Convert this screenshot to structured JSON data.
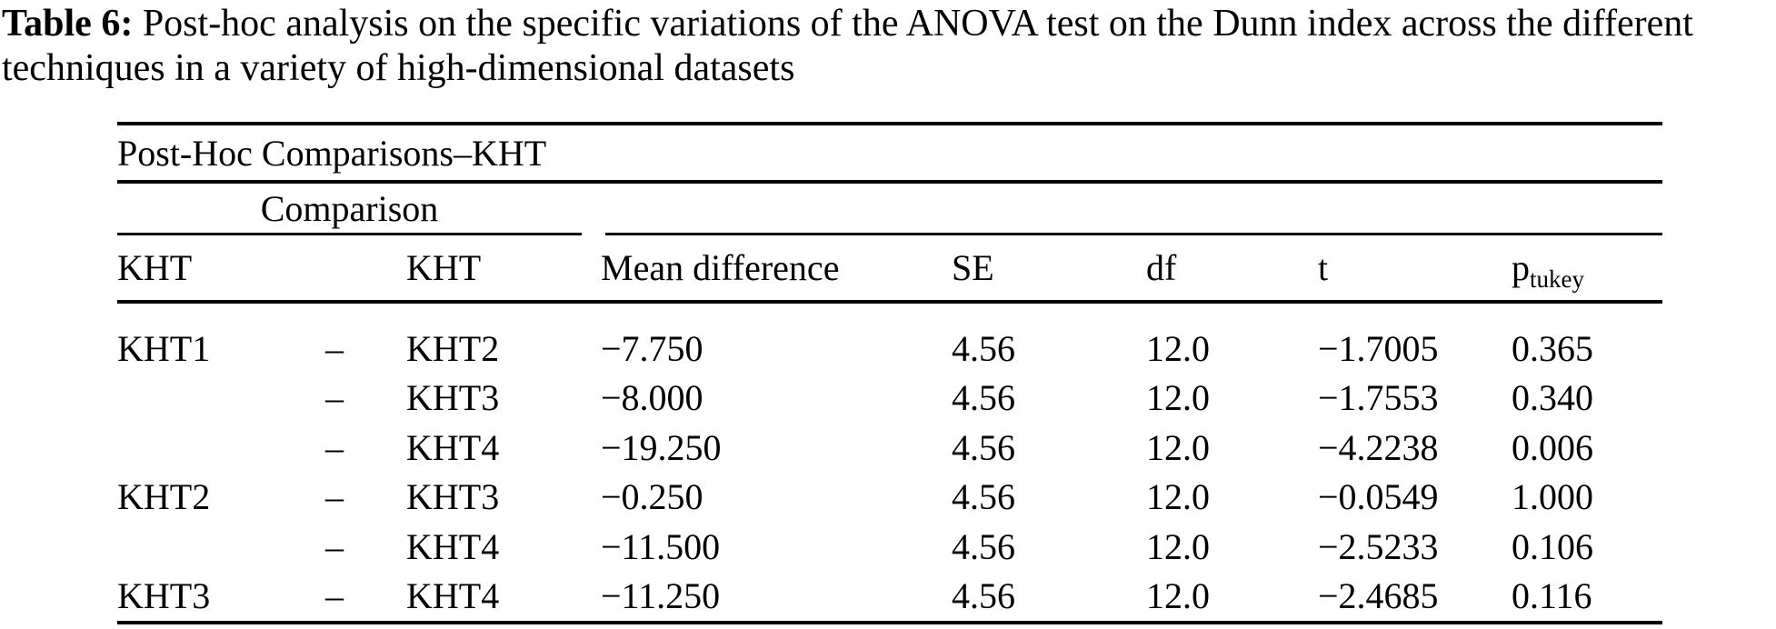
{
  "caption": {
    "label": "Table 6:",
    "text": " Post-hoc analysis on the specific variations of the ANOVA test on the Dunn index across the different techniques in a variety of high-dimensional datasets"
  },
  "table": {
    "title": "Post-Hoc Comparisons–KHT",
    "comparison_group_header": "Comparison",
    "columns": {
      "group_left": "KHT",
      "group_right": "KHT",
      "mean_difference": "Mean difference",
      "se": "SE",
      "df": "df",
      "t": "t",
      "p_base": "p",
      "p_sub": "tukey"
    },
    "rows": [
      {
        "left": "KHT1",
        "sep": "–",
        "right": "KHT2",
        "mean_difference": "−7.750",
        "se": "4.56",
        "df": "12.0",
        "t": "−1.7005",
        "p_tukey": "0.365"
      },
      {
        "left": "",
        "sep": "–",
        "right": "KHT3",
        "mean_difference": "−8.000",
        "se": "4.56",
        "df": "12.0",
        "t": "−1.7553",
        "p_tukey": "0.340"
      },
      {
        "left": "",
        "sep": "–",
        "right": "KHT4",
        "mean_difference": "−19.250",
        "se": "4.56",
        "df": "12.0",
        "t": "−4.2238",
        "p_tukey": "0.006"
      },
      {
        "left": "KHT2",
        "sep": "–",
        "right": "KHT3",
        "mean_difference": "−0.250",
        "se": "4.56",
        "df": "12.0",
        "t": "−0.0549",
        "p_tukey": "1.000"
      },
      {
        "left": "",
        "sep": "–",
        "right": "KHT4",
        "mean_difference": "−11.500",
        "se": "4.56",
        "df": "12.0",
        "t": "−2.5233",
        "p_tukey": "0.106"
      },
      {
        "left": "KHT3",
        "sep": "–",
        "right": "KHT4",
        "mean_difference": "−11.250",
        "se": "4.56",
        "df": "12.0",
        "t": "−2.4685",
        "p_tukey": "0.116"
      }
    ],
    "colors": {
      "text": "#000000",
      "background": "#ffffff",
      "rule": "#000000"
    }
  }
}
